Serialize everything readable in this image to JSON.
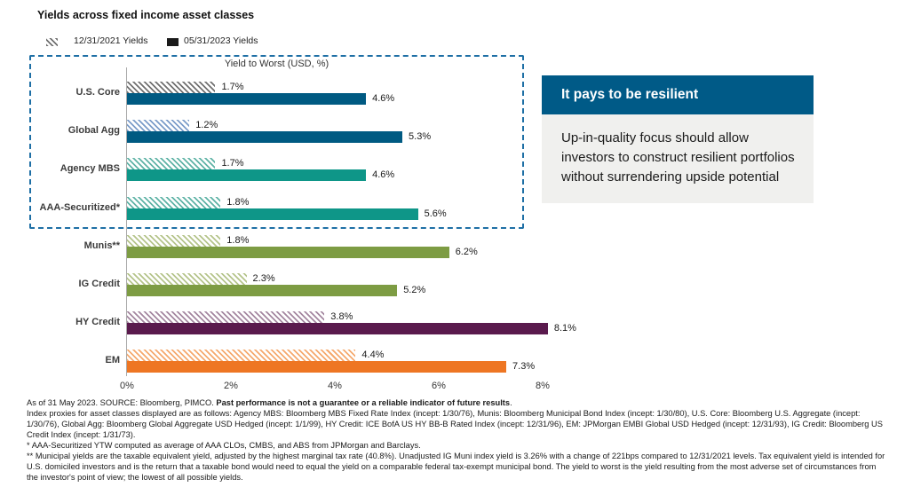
{
  "title": "Yields across fixed income asset classes",
  "legend": {
    "items": [
      {
        "label": "12/31/2021 Yields",
        "swatch": "hatched"
      },
      {
        "label": "05/31/2023 Yields",
        "swatch": "solid"
      }
    ],
    "hatch_swatch_color": "#707070",
    "solid_swatch_color": "#1A1A1A"
  },
  "chart_data": {
    "type": "bar",
    "orientation": "horizontal",
    "box_label": "Yield to Worst (USD, %)",
    "categories": [
      "U.S. Core",
      "Global Agg",
      "Agency MBS",
      "AAA-Securitized*",
      "Munis**",
      "IG Credit",
      "HY Credit",
      "EM"
    ],
    "series": [
      {
        "name": "12/31/2021 Yields",
        "style": "hatched",
        "values": [
          1.7,
          1.2,
          1.7,
          1.8,
          1.8,
          2.3,
          3.8,
          4.4
        ],
        "labels": [
          "1.7%",
          "1.2%",
          "1.7%",
          "1.8%",
          "1.8%",
          "2.3%",
          "3.8%",
          "4.4%"
        ]
      },
      {
        "name": "05/31/2023 Yields",
        "style": "solid",
        "values": [
          4.6,
          5.3,
          4.6,
          5.6,
          6.2,
          5.2,
          8.1,
          7.3
        ],
        "labels": [
          "4.6%",
          "5.3%",
          "4.6%",
          "5.6%",
          "6.2%",
          "5.2%",
          "8.1%",
          "7.3%"
        ]
      }
    ],
    "bar_colors": [
      "#005A82",
      "#005A82",
      "#0E9688",
      "#0E9688",
      "#7D9C43",
      "#7D9C43",
      "#5A1A4D",
      "#EE7623"
    ],
    "hatch_colors": [
      "#707070",
      "#7B9CC9",
      "#5FB3A6",
      "#5FB3A6",
      "#B5C48B",
      "#B5C48B",
      "#A487A0",
      "#F5A96E"
    ],
    "x_tick_labels": [
      "0%",
      "2%",
      "4%",
      "6%",
      "8%"
    ],
    "x_tick_values": [
      0,
      2,
      4,
      6,
      8
    ],
    "xlim": [
      0,
      8.5
    ],
    "grid": false,
    "legend_position": "top-left",
    "highlight_box_categories": [
      "U.S. Core",
      "Global Agg",
      "Agency MBS",
      "AAA-Securitized*"
    ]
  },
  "callout": {
    "title": "It pays to be resilient",
    "body": "Up-in-quality focus should allow investors to construct resilient portfolios without surrendering upside potential",
    "header_bg": "#005A87",
    "body_bg": "#F0F0EE"
  },
  "styles": {
    "dashed_border_color": "#1E6FA5"
  },
  "footnotes": {
    "as_of": "As of 31 May 2023. SOURCE: Bloomberg, PIMCO. ",
    "past_performance_bold": "Past performance is not a guarantee or a reliable indicator of future results",
    "after_bold": ".",
    "index_proxies": "Index proxies for asset classes displayed are as follows: Agency MBS: Bloomberg MBS Fixed Rate Index (incept: 1/30/76), Munis: Bloomberg Municipal Bond Index (incept: 1/30/80), U.S. Core: Bloomberg U.S. Aggregate (incept: 1/30/76), Global Agg: Bloomberg Global Aggregate USD Hedged (incept: 1/1/99), HY Credit: ICE BofA US HY BB-B Rated Index (incept: 12/31/96), EM: JPMorgan EMBI Global USD Hedged (incept: 12/31/93), IG Credit: Bloomberg US Credit Index (incept: 1/31/73).",
    "aaa_note": "* AAA-Securitized YTW computed as average of AAA CLOs, CMBS, and ABS from JPMorgan and Barclays.",
    "muni_note": "** Municipal yields are the taxable equivalent yield, adjusted by the highest marginal tax rate (40.8%). Unadjusted IG Muni index yield is 3.26% with a change of 221bps compared to 12/31/2021 levels. Tax equivalent yield is intended for U.S. domiciled investors and is the return that a taxable bond would need to equal the yield on a comparable federal tax-exempt municipal bond. The yield to worst is the yield resulting from the most adverse set of circumstances from the investor's point of view; the lowest of all possible yields."
  }
}
